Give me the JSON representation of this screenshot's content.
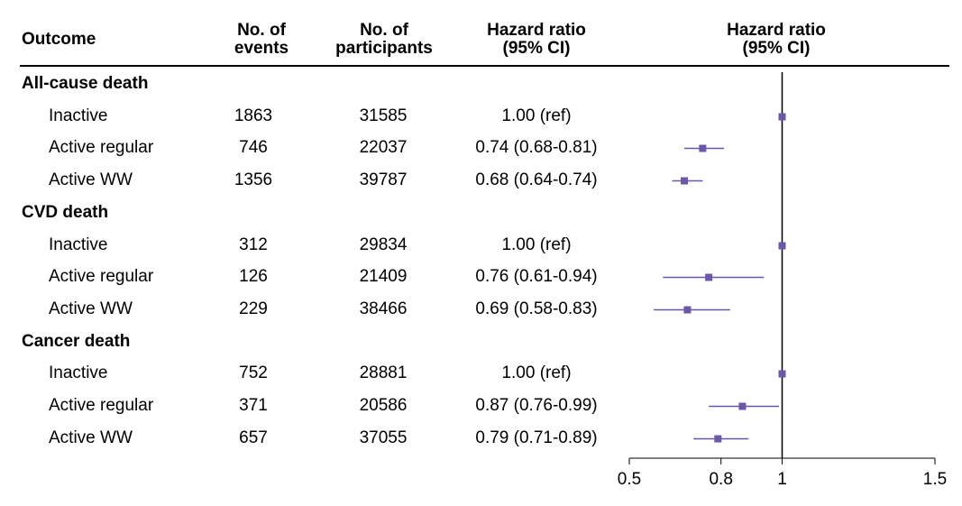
{
  "headers": {
    "outcome": "Outcome",
    "events": [
      "No. of",
      "events"
    ],
    "participants": [
      "No. of",
      "participants"
    ],
    "hr_text": [
      "Hazard ratio",
      "(95% CI)"
    ],
    "hr_plot": [
      "Hazard ratio",
      "(95% CI)"
    ]
  },
  "groups": [
    {
      "label": "All-cause death",
      "rows": [
        {
          "label": "Inactive",
          "events": "1863",
          "participants": "31585",
          "hr_text": "1.00 (ref)"
        },
        {
          "label": "Active regular",
          "events": "746",
          "participants": "22037",
          "hr_text": "0.74 (0.68-0.81)"
        },
        {
          "label": "Active WW",
          "events": "1356",
          "participants": "39787",
          "hr_text": "0.68 (0.64-0.74)"
        }
      ]
    },
    {
      "label": "CVD death",
      "rows": [
        {
          "label": "Inactive",
          "events": "312",
          "participants": "29834",
          "hr_text": "1.00 (ref)"
        },
        {
          "label": "Active regular",
          "events": "126",
          "participants": "21409",
          "hr_text": "0.76 (0.61-0.94)"
        },
        {
          "label": "Active WW",
          "events": "229",
          "participants": "38466",
          "hr_text": "0.69 (0.58-0.83)"
        }
      ]
    },
    {
      "label": "Cancer death",
      "rows": [
        {
          "label": "Inactive",
          "events": "752",
          "participants": "28881",
          "hr_text": "1.00 (ref)"
        },
        {
          "label": "Active regular",
          "events": "371",
          "participants": "20586",
          "hr_text": "0.87 (0.76-0.99)"
        },
        {
          "label": "Active WW",
          "events": "657",
          "participants": "37055",
          "hr_text": "0.79 (0.71-0.89)"
        }
      ]
    }
  ],
  "chart_data": {
    "type": "forest",
    "reference_line": 1,
    "xlim": [
      0.5,
      1.5
    ],
    "xticks": [
      0.5,
      0.8,
      1,
      1.5
    ],
    "xtick_labels": [
      "0.5",
      "0.8",
      "1",
      "1.5"
    ],
    "marker_color": "#6b57a8",
    "points": [
      {
        "hr": 1.0,
        "lo": 1.0,
        "hi": 1.0
      },
      {
        "hr": 0.74,
        "lo": 0.68,
        "hi": 0.81
      },
      {
        "hr": 0.68,
        "lo": 0.64,
        "hi": 0.74
      },
      {
        "hr": 1.0,
        "lo": 1.0,
        "hi": 1.0
      },
      {
        "hr": 0.76,
        "lo": 0.61,
        "hi": 0.94
      },
      {
        "hr": 0.69,
        "lo": 0.58,
        "hi": 0.83
      },
      {
        "hr": 1.0,
        "lo": 1.0,
        "hi": 1.0
      },
      {
        "hr": 0.87,
        "lo": 0.76,
        "hi": 0.99
      },
      {
        "hr": 0.79,
        "lo": 0.71,
        "hi": 0.89
      }
    ]
  }
}
